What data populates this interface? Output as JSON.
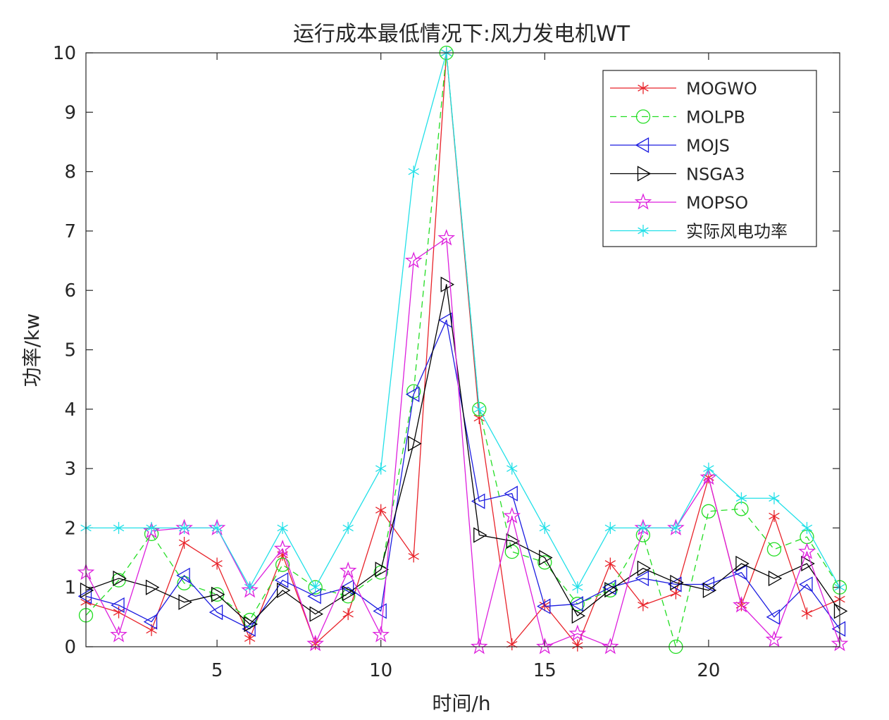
{
  "chart_data": {
    "type": "line",
    "title": "运行成本最低情况下:风力发电机WT",
    "xlabel": "时间/h",
    "ylabel": "功率/kw",
    "xlim": [
      1,
      24
    ],
    "ylim": [
      0,
      10
    ],
    "xticks": [
      5,
      10,
      15,
      20
    ],
    "yticks": [
      0,
      1,
      2,
      3,
      4,
      5,
      6,
      7,
      8,
      9,
      10
    ],
    "legend_position": "top-right",
    "x": [
      1,
      2,
      3,
      4,
      5,
      6,
      7,
      8,
      9,
      10,
      11,
      12,
      13,
      14,
      15,
      16,
      17,
      18,
      19,
      20,
      21,
      22,
      23,
      24
    ],
    "series": [
      {
        "name": "MOGWO",
        "color": "#e8232a",
        "marker": "asterisk",
        "dash": "solid",
        "values": [
          0.75,
          0.58,
          0.28,
          1.75,
          1.4,
          0.14,
          1.55,
          0.05,
          0.55,
          2.3,
          1.52,
          10.0,
          3.85,
          0.04,
          0.7,
          0.02,
          1.4,
          0.7,
          0.9,
          2.85,
          0.7,
          2.2,
          0.56,
          0.8
        ]
      },
      {
        "name": "MOLPB",
        "color": "#22dd22",
        "marker": "circle",
        "dash": "dashed",
        "values": [
          0.53,
          1.12,
          1.9,
          1.07,
          0.88,
          0.45,
          1.38,
          1.0,
          0.85,
          1.25,
          4.3,
          10.0,
          4.0,
          1.6,
          1.42,
          0.72,
          0.95,
          1.88,
          0.0,
          2.28,
          2.32,
          1.64,
          1.85,
          1.0
        ]
      },
      {
        "name": "MOJS",
        "color": "#1c1ce0",
        "marker": "triangle-left",
        "dash": "solid",
        "values": [
          0.85,
          0.7,
          0.42,
          1.2,
          0.58,
          0.3,
          1.12,
          0.85,
          1.0,
          0.6,
          4.25,
          5.5,
          2.45,
          2.58,
          0.68,
          0.72,
          1.0,
          1.15,
          1.05,
          1.05,
          1.25,
          0.5,
          1.05,
          0.3
        ]
      },
      {
        "name": "NSGA3",
        "color": "#000000",
        "marker": "triangle-right",
        "dash": "solid",
        "values": [
          0.95,
          1.15,
          1.0,
          0.75,
          0.88,
          0.38,
          0.95,
          0.55,
          0.9,
          1.3,
          3.42,
          6.1,
          1.88,
          1.78,
          1.5,
          0.52,
          0.96,
          1.32,
          1.08,
          0.95,
          1.4,
          1.15,
          1.4,
          0.6
        ]
      },
      {
        "name": "MOPSO",
        "color": "#dd1fdd",
        "marker": "star",
        "dash": "solid",
        "values": [
          1.25,
          0.2,
          1.95,
          2.0,
          2.0,
          0.95,
          1.65,
          0.05,
          1.28,
          0.2,
          6.5,
          6.88,
          0.0,
          2.2,
          0.0,
          0.22,
          0.0,
          2.0,
          2.0,
          2.85,
          0.7,
          0.12,
          1.6,
          0.05
        ]
      },
      {
        "name": "实际风电功率",
        "color": "#22e0e8",
        "marker": "asterisk",
        "dash": "solid",
        "values": [
          2,
          2,
          2,
          2,
          2,
          1,
          2,
          1,
          2,
          3,
          8,
          10,
          4,
          3,
          2,
          1,
          2,
          2,
          2,
          3,
          2.5,
          2.5,
          2,
          1
        ]
      }
    ]
  }
}
